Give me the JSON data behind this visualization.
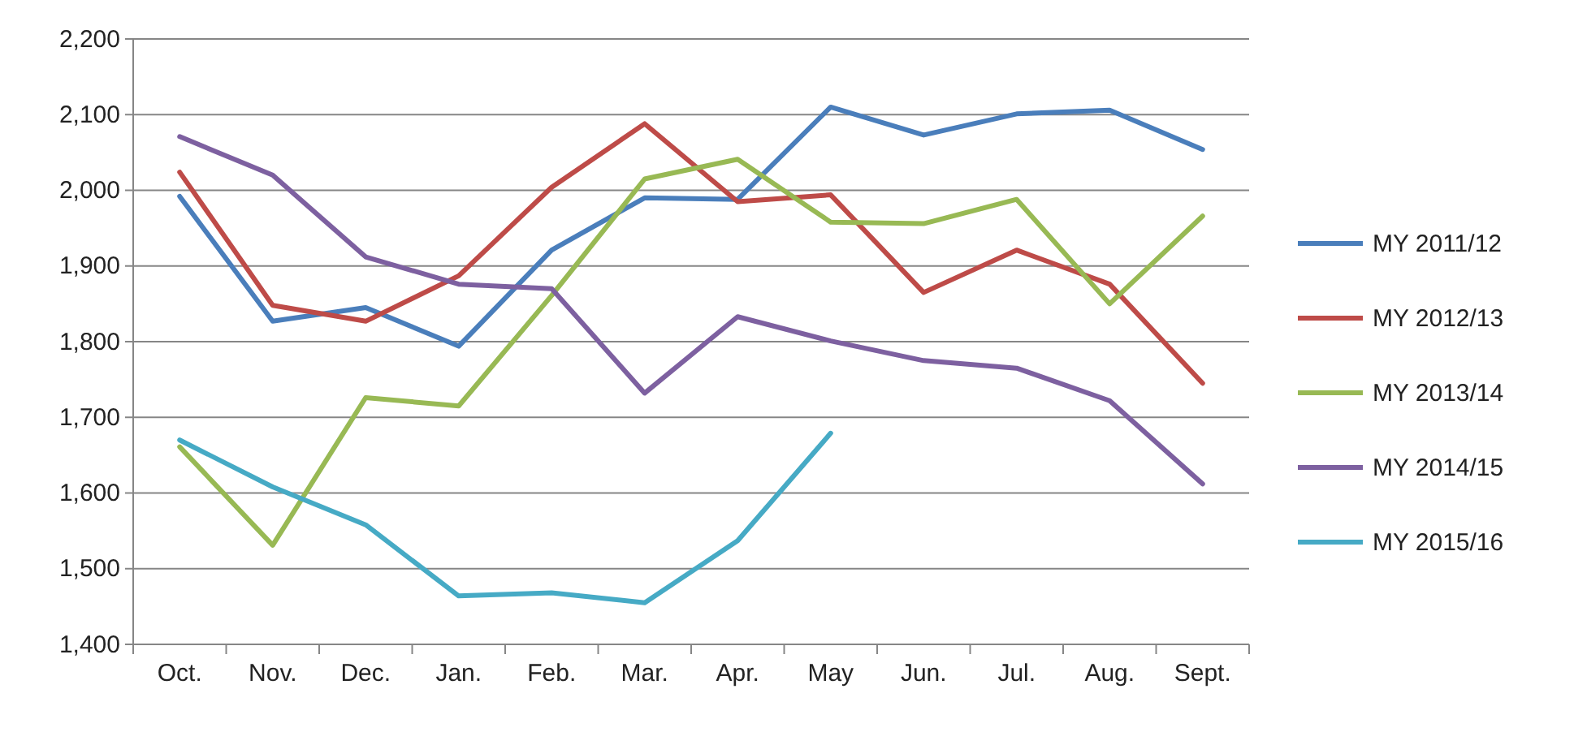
{
  "chart_data": {
    "type": "line",
    "categories": [
      "Oct.",
      "Nov.",
      "Dec.",
      "Jan.",
      "Feb.",
      "Mar.",
      "Apr.",
      "May",
      "Jun.",
      "Jul.",
      "Aug.",
      "Sept."
    ],
    "series": [
      {
        "name": "MY 2011/12",
        "color": "#4a7ebb",
        "values": [
          1992,
          1827,
          1845,
          1794,
          1921,
          1990,
          1988,
          2110,
          2073,
          2101,
          2106,
          2054
        ]
      },
      {
        "name": "MY 2012/13",
        "color": "#be4b48",
        "values": [
          2024,
          1848,
          1827,
          1887,
          2004,
          2088,
          1985,
          1994,
          1865,
          1921,
          1876,
          1745
        ]
      },
      {
        "name": "MY 2013/14",
        "color": "#98b954",
        "values": [
          1661,
          1531,
          1726,
          1715,
          1861,
          2015,
          2041,
          1958,
          1956,
          1988,
          1850,
          1966
        ]
      },
      {
        "name": "MY 2014/15",
        "color": "#7d60a0",
        "values": [
          2071,
          2020,
          1912,
          1876,
          1870,
          1732,
          1833,
          1801,
          1775,
          1765,
          1722,
          1612
        ]
      },
      {
        "name": "MY 2015/16",
        "color": "#46aac5",
        "values": [
          1670,
          1608,
          1558,
          1464,
          1468,
          1455,
          1537,
          1679,
          null,
          null,
          null,
          null
        ]
      }
    ],
    "ylim": [
      1400,
      2200
    ],
    "yticks": [
      {
        "value": 1400,
        "label": "1,400"
      },
      {
        "value": 1500,
        "label": "1,500"
      },
      {
        "value": 1600,
        "label": "1,600"
      },
      {
        "value": 1700,
        "label": "1,700"
      },
      {
        "value": 1800,
        "label": "1,800"
      },
      {
        "value": 1900,
        "label": "1,900"
      },
      {
        "value": 2000,
        "label": "2,000"
      },
      {
        "value": 2100,
        "label": "2,100"
      },
      {
        "value": 2200,
        "label": "2,200"
      }
    ],
    "grid": "y",
    "legend": "right",
    "marker": "none",
    "line_style": "solid"
  }
}
